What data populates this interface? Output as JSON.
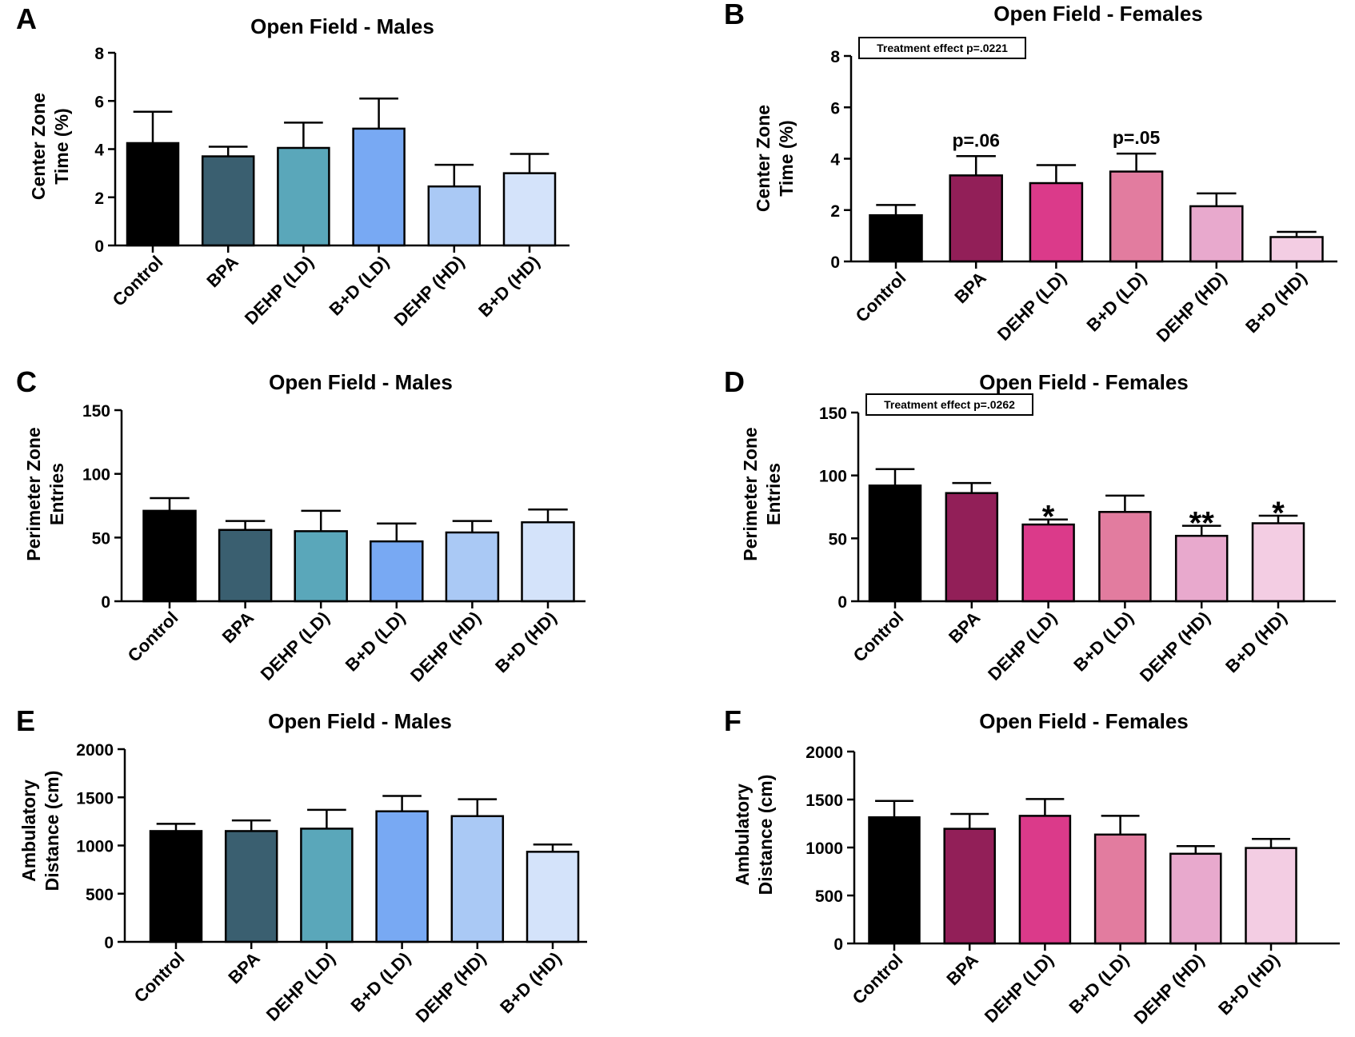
{
  "figure": {
    "background": "#ffffff"
  },
  "chart_data": [
    {
      "panel_letter": "A",
      "type": "bar",
      "title": "Open Field - Males",
      "ylabel_lines": [
        "Center Zone",
        "Time (%)"
      ],
      "xlabel": "",
      "categories": [
        "Control",
        "BPA",
        "DEHP (LD)",
        "B+D (LD)",
        "DEHP (HD)",
        "B+D (HD)"
      ],
      "values": [
        4.25,
        3.7,
        4.05,
        4.85,
        2.45,
        3.0
      ],
      "errors": [
        1.3,
        0.4,
        1.05,
        1.25,
        0.9,
        0.8
      ],
      "colors": [
        "#000000",
        "#3a5f70",
        "#5aa7ba",
        "#78a9f3",
        "#aac9f5",
        "#d4e3fa"
      ],
      "ylim": [
        0,
        8
      ],
      "yticks": [
        0,
        2,
        4,
        6,
        8
      ],
      "annotations": [
        "",
        "",
        "",
        "",
        "",
        ""
      ],
      "effect_box": "",
      "legend": "none",
      "grid": false
    },
    {
      "panel_letter": "B",
      "type": "bar",
      "title": "Open Field - Females",
      "ylabel_lines": [
        "Center Zone",
        "Time (%)"
      ],
      "xlabel": "",
      "categories": [
        "Control",
        "BPA",
        "DEHP (LD)",
        "B+D (LD)",
        "DEHP (HD)",
        "B+D (HD)"
      ],
      "values": [
        1.8,
        3.35,
        3.05,
        3.5,
        2.15,
        0.95
      ],
      "errors": [
        0.4,
        0.75,
        0.7,
        0.7,
        0.5,
        0.2
      ],
      "colors": [
        "#000000",
        "#921f58",
        "#db3a8a",
        "#e27c9f",
        "#e8a9cd",
        "#f3cde3"
      ],
      "ylim": [
        0,
        8
      ],
      "yticks": [
        0,
        2,
        4,
        6,
        8
      ],
      "annotations": [
        "",
        "p=.06",
        "",
        "p=.05",
        "",
        ""
      ],
      "effect_box": "Treatment effect p=.0221",
      "legend": "none",
      "grid": false
    },
    {
      "panel_letter": "C",
      "type": "bar",
      "title": "Open Field - Males",
      "ylabel_lines": [
        "Perimeter Zone",
        "Entries"
      ],
      "xlabel": "",
      "categories": [
        "Control",
        "BPA",
        "DEHP (LD)",
        "B+D (LD)",
        "DEHP (HD)",
        "B+D (HD)"
      ],
      "values": [
        71,
        56,
        55,
        47,
        54,
        62
      ],
      "errors": [
        10,
        7,
        16,
        14,
        9,
        10
      ],
      "colors": [
        "#000000",
        "#3a5f70",
        "#5aa7ba",
        "#78a9f3",
        "#aac9f5",
        "#d4e3fa"
      ],
      "ylim": [
        0,
        150
      ],
      "yticks": [
        0,
        50,
        100,
        150
      ],
      "annotations": [
        "",
        "",
        "",
        "",
        "",
        ""
      ],
      "effect_box": "",
      "legend": "none",
      "grid": false
    },
    {
      "panel_letter": "D",
      "type": "bar",
      "title": "Open Field - Females",
      "ylabel_lines": [
        "Perimeter Zone",
        "Entries"
      ],
      "xlabel": "",
      "categories": [
        "Control",
        "BPA",
        "DEHP (LD)",
        "B+D (LD)",
        "DEHP (HD)",
        "B+D (HD)"
      ],
      "values": [
        92,
        86,
        61,
        71,
        52,
        62
      ],
      "errors": [
        13,
        8,
        4,
        13,
        8,
        6
      ],
      "colors": [
        "#000000",
        "#921f58",
        "#db3a8a",
        "#e27c9f",
        "#e8a9cd",
        "#f3cde3"
      ],
      "ylim": [
        0,
        150
      ],
      "yticks": [
        0,
        50,
        100,
        150
      ],
      "annotations": [
        "",
        "",
        "*",
        "",
        "**",
        "*"
      ],
      "effect_box": "Treatment effect p=.0262",
      "legend": "none",
      "grid": false
    },
    {
      "panel_letter": "E",
      "type": "bar",
      "title": "Open Field - Males",
      "ylabel_lines": [
        "Ambulatory",
        "Distance (cm)"
      ],
      "xlabel": "",
      "categories": [
        "Control",
        "BPA",
        "DEHP (LD)",
        "B+D (LD)",
        "DEHP (HD)",
        "B+D (HD)"
      ],
      "values": [
        1150,
        1150,
        1175,
        1355,
        1305,
        935
      ],
      "errors": [
        75,
        110,
        195,
        160,
        175,
        75
      ],
      "colors": [
        "#000000",
        "#3a5f70",
        "#5aa7ba",
        "#78a9f3",
        "#aac9f5",
        "#d4e3fa"
      ],
      "ylim": [
        0,
        2000
      ],
      "yticks": [
        0,
        500,
        1000,
        1500,
        2000
      ],
      "annotations": [
        "",
        "",
        "",
        "",
        "",
        ""
      ],
      "effect_box": "",
      "legend": "none",
      "grid": false
    },
    {
      "panel_letter": "F",
      "type": "bar",
      "title": "Open Field - Females",
      "ylabel_lines": [
        "Ambulatory",
        "Distance (cm)"
      ],
      "xlabel": "",
      "categories": [
        "Control",
        "BPA",
        "DEHP (LD)",
        "B+D (LD)",
        "DEHP (HD)",
        "B+D (HD)"
      ],
      "values": [
        1315,
        1195,
        1330,
        1135,
        935,
        995
      ],
      "errors": [
        170,
        155,
        175,
        195,
        80,
        95
      ],
      "colors": [
        "#000000",
        "#921f58",
        "#db3a8a",
        "#e27c9f",
        "#e8a9cd",
        "#f3cde3"
      ],
      "ylim": [
        0,
        2000
      ],
      "yticks": [
        0,
        500,
        1000,
        1500,
        2000
      ],
      "annotations": [
        "",
        "",
        "",
        "",
        "",
        ""
      ],
      "effect_box": "",
      "legend": "none",
      "grid": false
    }
  ]
}
